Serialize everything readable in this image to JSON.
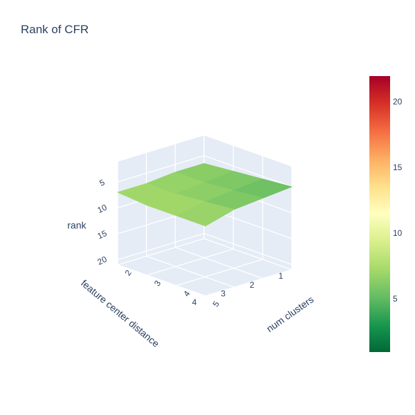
{
  "chart_data": {
    "type": "surface",
    "title": "Rank of CFR",
    "x_axis": {
      "label": "num clusters",
      "ticks": [
        2,
        3,
        4,
        5
      ],
      "range": [
        2,
        5
      ]
    },
    "y_axis": {
      "label": "feature center distance",
      "ticks": [
        1,
        2,
        3,
        4
      ],
      "range": [
        1,
        4
      ]
    },
    "z_axis": {
      "label": "rank",
      "ticks": [
        5,
        10,
        15,
        20
      ],
      "range": [
        1,
        22
      ],
      "reversed": true
    },
    "x": [
      2,
      3,
      4,
      5
    ],
    "y": [
      1,
      2,
      3,
      4
    ],
    "z": [
      [
        6.5,
        6.0,
        5.5,
        5.0
      ],
      [
        6.5,
        6.5,
        6.0,
        5.5
      ],
      [
        7.0,
        7.0,
        6.5,
        6.0
      ],
      [
        7.0,
        7.5,
        7.5,
        7.5
      ]
    ],
    "colorscale": "RdYlGn",
    "colorbar": {
      "range": [
        1,
        22
      ],
      "ticks": [
        5,
        10,
        15,
        20
      ]
    },
    "grid": true
  }
}
